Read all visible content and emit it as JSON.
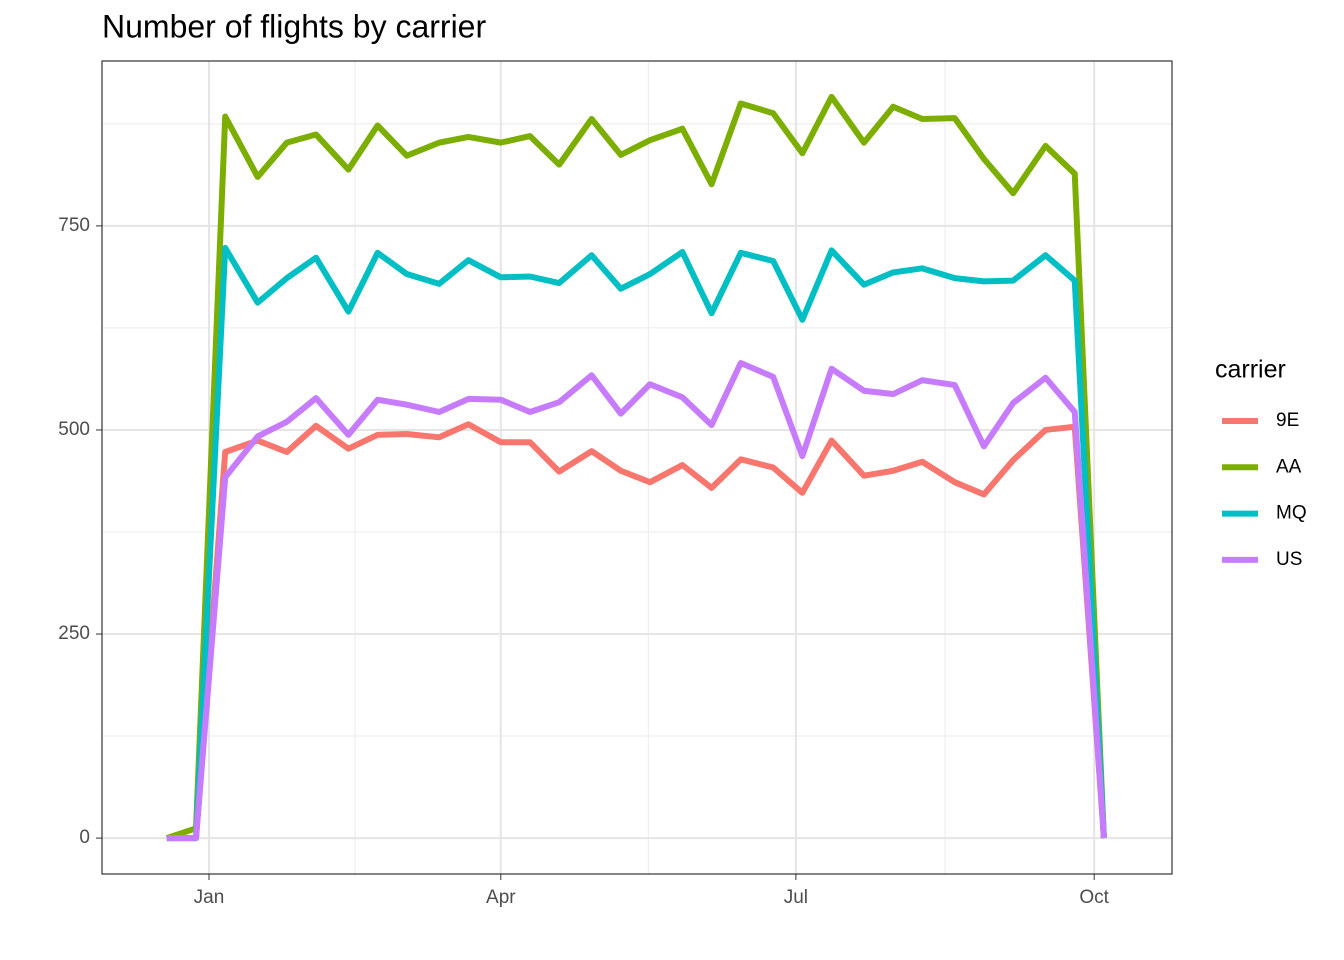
{
  "chart_data": {
    "type": "line",
    "title": "Number of flights by carrier",
    "legend_title": "carrier",
    "legend_position": "right",
    "grid": true,
    "x": [
      -13,
      -4,
      5,
      15,
      24,
      33,
      43,
      52,
      61,
      71,
      80,
      90,
      99,
      108,
      118,
      127,
      136,
      146,
      155,
      164,
      174,
      183,
      192,
      202,
      211,
      220,
      230,
      239,
      248,
      258,
      267,
      276
    ],
    "xlim": [
      -33,
      297
    ],
    "xticks": [
      {
        "value": 0,
        "label": "Jan"
      },
      {
        "value": 90,
        "label": "Apr"
      },
      {
        "value": 181,
        "label": "Jul"
      },
      {
        "value": 273,
        "label": "Oct"
      }
    ],
    "minor_xticks": [
      45,
      135.5,
      227
    ],
    "ylim": [
      -44,
      952
    ],
    "yticks": [
      0,
      250,
      500,
      750
    ],
    "minor_yticks": [
      125,
      375,
      625,
      875
    ],
    "series": [
      {
        "name": "9E",
        "color": "#F8766D",
        "values": [
          0,
          0,
          473,
          487,
          473,
          505,
          477,
          494,
          495,
          491,
          507,
          485,
          485,
          449,
          474,
          450,
          436,
          457,
          429,
          464,
          454,
          423,
          487,
          444,
          450,
          461,
          436,
          421,
          463,
          500,
          504,
          0
        ]
      },
      {
        "name": "AA",
        "color": "#7CAE00",
        "values": [
          0,
          12,
          884,
          810,
          852,
          862,
          819,
          873,
          836,
          852,
          859,
          852,
          860,
          825,
          881,
          837,
          855,
          869,
          801,
          900,
          888,
          839,
          908,
          852,
          896,
          881,
          882,
          832,
          790,
          848,
          814,
          0
        ]
      },
      {
        "name": "MQ",
        "color": "#00BFC4",
        "values": [
          0,
          0,
          723,
          656,
          686,
          711,
          645,
          717,
          691,
          679,
          708,
          687,
          688,
          680,
          714,
          673,
          691,
          718,
          643,
          717,
          707,
          635,
          720,
          678,
          693,
          698,
          686,
          682,
          683,
          714,
          683,
          0
        ]
      },
      {
        "name": "US",
        "color": "#C77CFF",
        "values": [
          0,
          0,
          442,
          492,
          510,
          539,
          494,
          537,
          531,
          522,
          538,
          537,
          522,
          534,
          567,
          520,
          556,
          540,
          506,
          582,
          565,
          468,
          575,
          548,
          544,
          561,
          555,
          480,
          533,
          564,
          522,
          0
        ]
      }
    ]
  }
}
